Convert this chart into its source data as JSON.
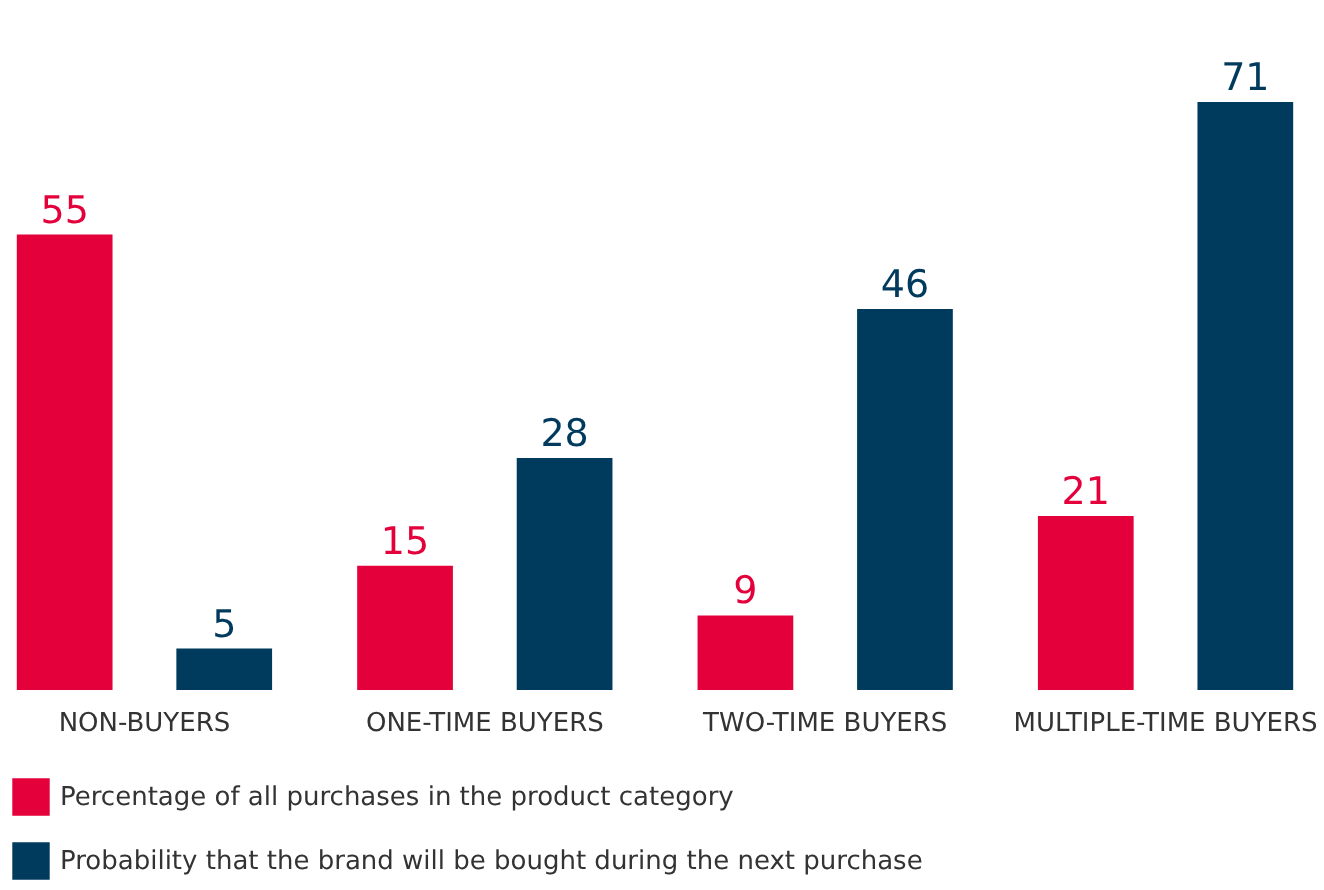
{
  "chart_data": {
    "type": "bar",
    "categories": [
      "NON-BUYERS",
      "ONE-TIME BUYERS",
      "TWO-TIME BUYERS",
      "MULTIPLE-TIME BUYERS"
    ],
    "series": [
      {
        "name": "Percentage of all purchases in the product category",
        "color": "#e4003b",
        "values": [
          55,
          15,
          9,
          21
        ]
      },
      {
        "name": "Probability that the brand will be bought during the next purchase",
        "color": "#003a5d",
        "values": [
          5,
          28,
          46,
          71
        ]
      }
    ],
    "data_labels": true,
    "legend": "bottom left",
    "grid": false
  }
}
